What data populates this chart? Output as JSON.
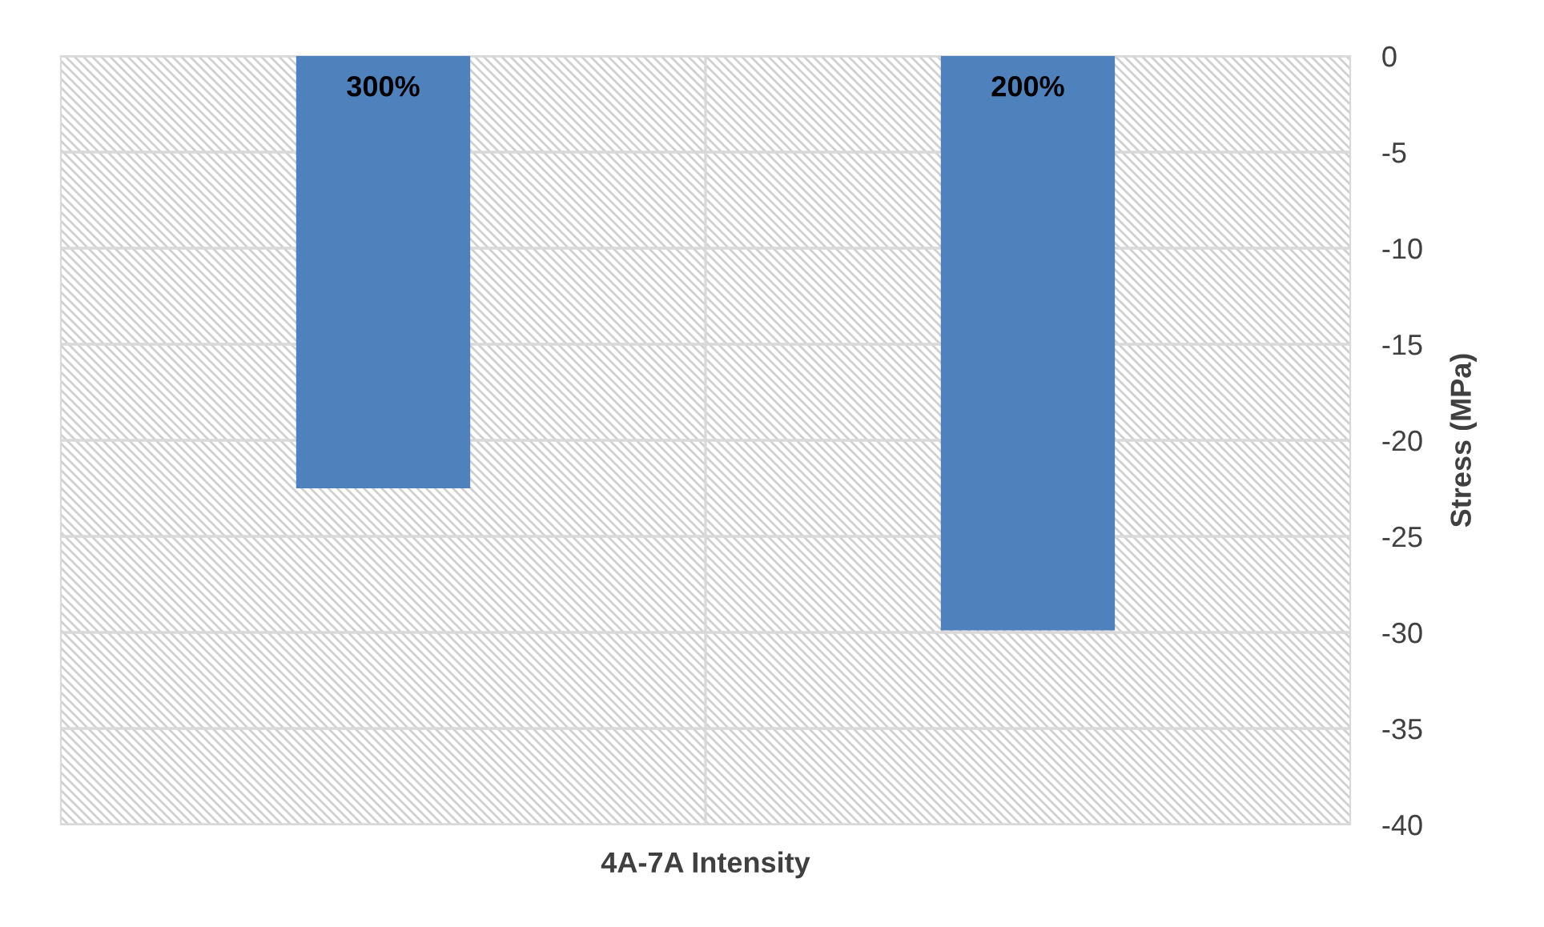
{
  "chart_data": {
    "type": "bar",
    "xlabel": "4A-7A Intensity",
    "ylabel": "Stress (MPa)",
    "categories": [
      "300%",
      "200%"
    ],
    "values": [
      -22.5,
      -29.9
    ],
    "color": "#4f81bd",
    "ylim": [
      -40,
      0
    ],
    "yticks": [
      0,
      -5,
      -10,
      -15,
      -20,
      -25,
      -30,
      -35,
      -40
    ],
    "grid": true
  }
}
